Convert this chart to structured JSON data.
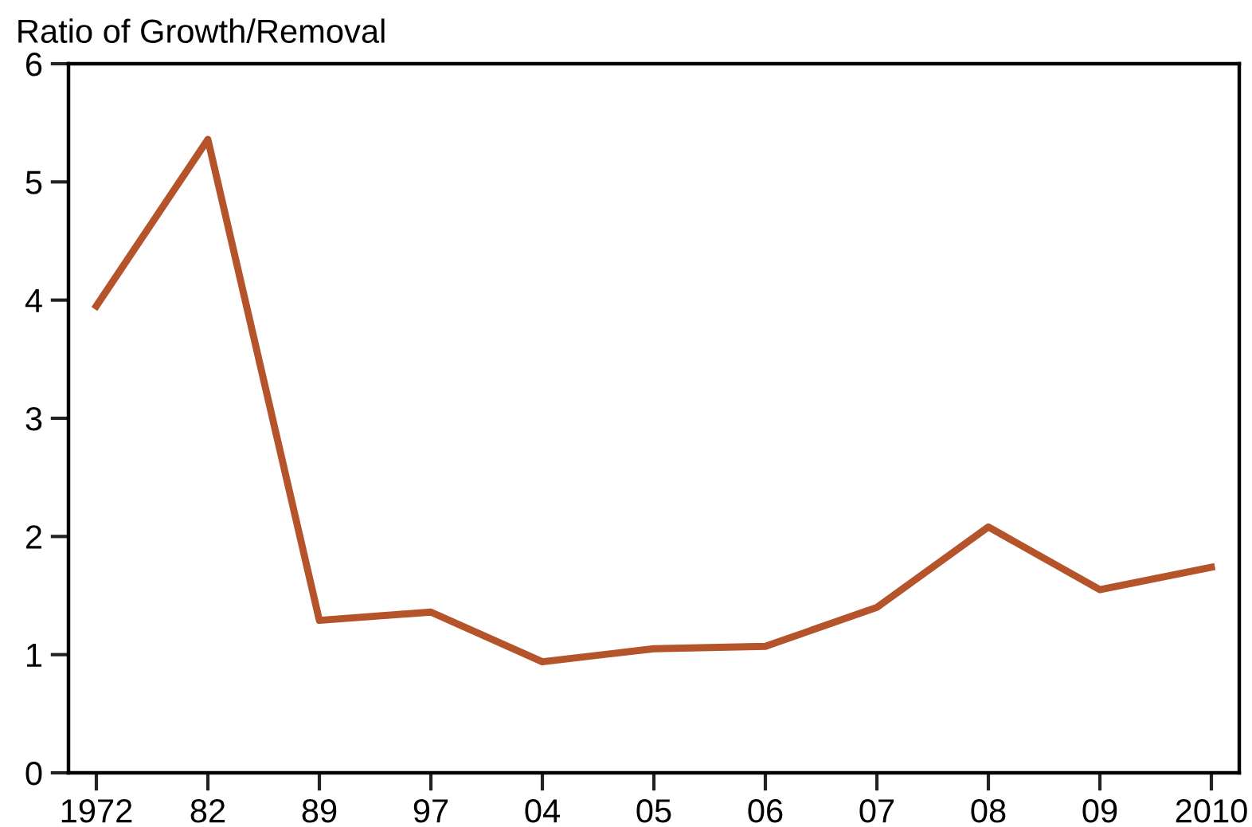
{
  "chart_data": {
    "type": "line",
    "ylabel": "Ratio of Growth/Removal",
    "categories": [
      "1972",
      "82",
      "89",
      "97",
      "04",
      "05",
      "06",
      "07",
      "08",
      "09",
      "2010"
    ],
    "series": [
      {
        "color": "#b5532a",
        "values": [
          3.95,
          5.36,
          1.29,
          1.36,
          0.94,
          1.05,
          1.07,
          1.4,
          2.08,
          1.55,
          1.74
        ]
      }
    ],
    "ylim": [
      0,
      6
    ],
    "yticks": [
      0,
      1,
      2,
      3,
      4,
      5,
      6
    ],
    "grid": false,
    "legend": false,
    "marker": "none",
    "line_style": "solid"
  }
}
